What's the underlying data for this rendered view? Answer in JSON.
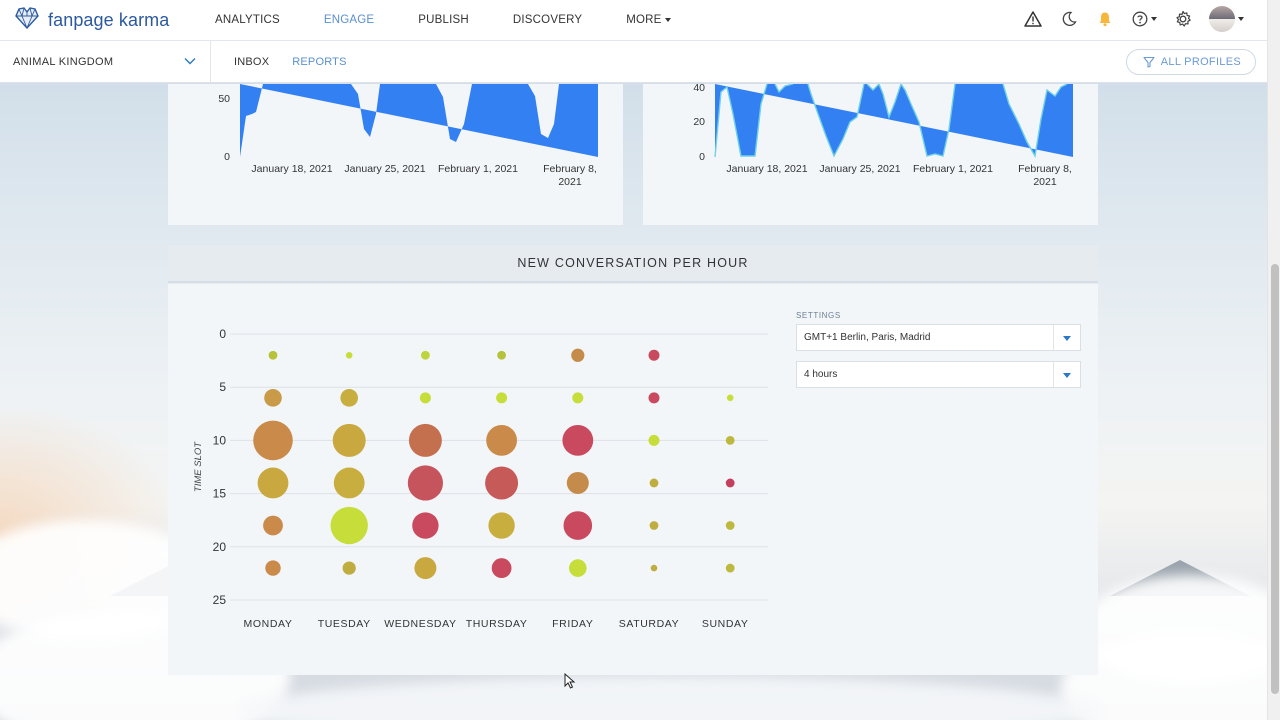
{
  "app": {
    "logo_text": "fanpage karma",
    "nav": [
      {
        "label": "ANALYTICS",
        "active": false
      },
      {
        "label": "ENGAGE",
        "active": true
      },
      {
        "label": "PUBLISH",
        "active": false
      },
      {
        "label": "DISCOVERY",
        "active": false
      },
      {
        "label": "MORE",
        "active": false
      }
    ],
    "icons": [
      "warning-icon",
      "moon-icon",
      "bell-icon",
      "help-icon",
      "gear-icon",
      "avatar"
    ]
  },
  "subbar": {
    "profile": "ANIMAL KINGDOM",
    "tabs": [
      {
        "label": "INBOX",
        "active": false
      },
      {
        "label": "REPORTS",
        "active": true
      }
    ],
    "filter_label": "ALL PROFILES"
  },
  "top_charts": {
    "left": {
      "yticks": [
        "50",
        "0"
      ],
      "xticks": [
        "January 18, 2021",
        "January 25, 2021",
        "February 1, 2021",
        "February 8, 2021"
      ]
    },
    "right": {
      "yticks": [
        "40",
        "20",
        "0"
      ],
      "xticks": [
        "January 18, 2021",
        "January 25, 2021",
        "February 1, 2021",
        "February 8, 2021"
      ]
    }
  },
  "heatmap": {
    "title": "NEW CONVERSATION PER HOUR",
    "settings_label": "SETTINGS",
    "timezone": "GMT+1 Berlin, Paris, Madrid",
    "interval": "4 hours"
  },
  "chart_data": {
    "type": "scatter",
    "title": "NEW CONVERSATION PER HOUR",
    "ylabel": "TIME SLOT",
    "ylim": [
      0,
      25
    ],
    "yticks": [
      "0",
      "5",
      "10",
      "15",
      "20",
      "25"
    ],
    "categories": [
      "MONDAY",
      "TUESDAY",
      "WEDNESDAY",
      "THURSDAY",
      "FRIDAY",
      "SATURDAY",
      "SUNDAY"
    ],
    "rows": [
      2,
      6,
      10,
      14,
      18,
      22
    ],
    "grid": true,
    "bubbles": [
      [
        {
          "s": 2,
          "c": "#b7c23a"
        },
        {
          "s": 1.5,
          "c": "#c6dd3a"
        },
        {
          "s": 2,
          "c": "#bed43b"
        },
        {
          "s": 2,
          "c": "#b5c23c"
        },
        {
          "s": 3,
          "c": "#c58b4a"
        },
        {
          "s": 2.5,
          "c": "#c94a5e"
        },
        null
      ],
      [
        {
          "s": 4,
          "c": "#c99a47"
        },
        {
          "s": 4,
          "c": "#c8ae3f"
        },
        {
          "s": 2.5,
          "c": "#c6dd3a"
        },
        {
          "s": 2.5,
          "c": "#c6dd3a"
        },
        {
          "s": 2.5,
          "c": "#c6dd3a"
        },
        {
          "s": 2.5,
          "c": "#c94a5e"
        },
        {
          "s": 1.5,
          "c": "#c6dd3a"
        }
      ],
      [
        {
          "s": 9,
          "c": "#c98a4a"
        },
        {
          "s": 7.5,
          "c": "#c8a83f"
        },
        {
          "s": 7.5,
          "c": "#c4704f"
        },
        {
          "s": 7,
          "c": "#c98a4a"
        },
        {
          "s": 7,
          "c": "#c94a5e"
        },
        {
          "s": 2.5,
          "c": "#c6dd3a"
        },
        {
          "s": 2,
          "c": "#bdb93f"
        }
      ],
      [
        {
          "s": 7,
          "c": "#c8a83f"
        },
        {
          "s": 7,
          "c": "#c8ae3f"
        },
        {
          "s": 8,
          "c": "#c5545c"
        },
        {
          "s": 7.5,
          "c": "#c55a59"
        },
        {
          "s": 5,
          "c": "#c58b4a"
        },
        {
          "s": 2,
          "c": "#bfae3f"
        },
        {
          "s": 2,
          "c": "#c43f5e"
        }
      ],
      [
        {
          "s": 4.5,
          "c": "#c98a4a"
        },
        {
          "s": 8.5,
          "c": "#c6dd3a"
        },
        {
          "s": 6,
          "c": "#c94a5e"
        },
        {
          "s": 6,
          "c": "#c8ae3f"
        },
        {
          "s": 6.5,
          "c": "#c94a5e"
        },
        {
          "s": 2,
          "c": "#bfae3f"
        },
        {
          "s": 2,
          "c": "#bdb93f"
        }
      ],
      [
        {
          "s": 3.5,
          "c": "#c98a4a"
        },
        {
          "s": 3,
          "c": "#bfae3f"
        },
        {
          "s": 5,
          "c": "#c8a83f"
        },
        {
          "s": 4.5,
          "c": "#c94a5e"
        },
        {
          "s": 4,
          "c": "#c6dd3a"
        },
        {
          "s": 1.5,
          "c": "#bfae3f"
        },
        {
          "s": 2,
          "c": "#bdb93f"
        }
      ]
    ]
  }
}
